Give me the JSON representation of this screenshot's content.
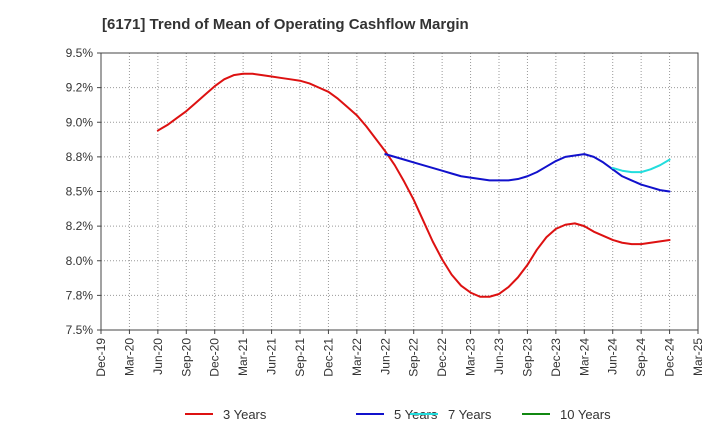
{
  "title": "[6171]  Trend of Mean of Operating Cashflow Margin",
  "chart_data": {
    "type": "line",
    "title": "[6171]  Trend of Mean of Operating Cashflow Margin",
    "xlabel": "",
    "ylabel": "",
    "x_ticks": [
      "Dec-19",
      "Mar-20",
      "Jun-20",
      "Sep-20",
      "Dec-20",
      "Mar-21",
      "Jun-21",
      "Sep-21",
      "Dec-21",
      "Mar-22",
      "Jun-22",
      "Sep-22",
      "Dec-22",
      "Mar-23",
      "Jun-23",
      "Sep-23",
      "Dec-23",
      "Mar-24",
      "Jun-24",
      "Sep-24",
      "Dec-24",
      "Mar-25"
    ],
    "y_ticks": [
      "7.5%",
      "7.8%",
      "8.0%",
      "8.2%",
      "8.5%",
      "8.8%",
      "9.0%",
      "9.2%",
      "9.5%"
    ],
    "y_tick_values": [
      7.5,
      7.75,
      8.0,
      8.25,
      8.5,
      8.75,
      9.0,
      9.25,
      9.5
    ],
    "ylim": [
      7.5,
      9.5
    ],
    "grid": true,
    "legend_position": "bottom",
    "series": [
      {
        "name": "3 Years",
        "color": "#dd1111",
        "x": [
          "Jun-20",
          "Jul-20",
          "Aug-20",
          "Sep-20",
          "Oct-20",
          "Nov-20",
          "Dec-20",
          "Jan-21",
          "Feb-21",
          "Mar-21",
          "Apr-21",
          "May-21",
          "Jun-21",
          "Jul-21",
          "Aug-21",
          "Sep-21",
          "Oct-21",
          "Nov-21",
          "Dec-21",
          "Jan-22",
          "Feb-22",
          "Mar-22",
          "Apr-22",
          "May-22",
          "Jun-22",
          "Jul-22",
          "Aug-22",
          "Sep-22",
          "Oct-22",
          "Nov-22",
          "Dec-22",
          "Jan-23",
          "Feb-23",
          "Mar-23",
          "Apr-23",
          "May-23",
          "Jun-23",
          "Jul-23",
          "Aug-23",
          "Sep-23",
          "Oct-23",
          "Nov-23",
          "Dec-23",
          "Jan-24",
          "Feb-24",
          "Mar-24",
          "Apr-24",
          "May-24",
          "Jun-24",
          "Jul-24",
          "Aug-24",
          "Sep-24",
          "Oct-24",
          "Nov-24",
          "Dec-24"
        ],
        "values": [
          8.94,
          8.98,
          9.03,
          9.08,
          9.14,
          9.2,
          9.26,
          9.31,
          9.34,
          9.35,
          9.35,
          9.34,
          9.33,
          9.32,
          9.31,
          9.3,
          9.28,
          9.25,
          9.22,
          9.17,
          9.11,
          9.05,
          8.97,
          8.88,
          8.79,
          8.69,
          8.57,
          8.44,
          8.29,
          8.14,
          8.01,
          7.9,
          7.82,
          7.77,
          7.74,
          7.74,
          7.76,
          7.81,
          7.88,
          7.97,
          8.08,
          8.17,
          8.23,
          8.26,
          8.27,
          8.25,
          8.21,
          8.18,
          8.15,
          8.13,
          8.12,
          8.12,
          8.13,
          8.14,
          8.15
        ],
        "x_offset": 6
      },
      {
        "name": "5 Years",
        "color": "#1111cc",
        "x": [
          "Jun-22",
          "Jul-22",
          "Aug-22",
          "Sep-22",
          "Oct-22",
          "Nov-22",
          "Dec-22",
          "Jan-23",
          "Feb-23",
          "Mar-23",
          "Apr-23",
          "May-23",
          "Jun-23",
          "Jul-23",
          "Aug-23",
          "Sep-23",
          "Oct-23",
          "Nov-23",
          "Dec-23",
          "Jan-24",
          "Feb-24",
          "Mar-24",
          "Apr-24",
          "May-24",
          "Jun-24",
          "Jul-24",
          "Aug-24",
          "Sep-24",
          "Oct-24",
          "Nov-24",
          "Dec-24"
        ],
        "values": [
          8.77,
          8.75,
          8.73,
          8.71,
          8.69,
          8.67,
          8.65,
          8.63,
          8.61,
          8.6,
          8.59,
          8.58,
          8.58,
          8.58,
          8.59,
          8.61,
          8.64,
          8.68,
          8.72,
          8.75,
          8.76,
          8.77,
          8.75,
          8.71,
          8.66,
          8.61,
          8.58,
          8.55,
          8.53,
          8.51,
          8.5
        ],
        "x_offset": 30
      },
      {
        "name": "7 Years",
        "color": "#22dddd",
        "x": [
          "Jun-24",
          "Jul-24",
          "Aug-24",
          "Sep-24",
          "Oct-24",
          "Nov-24",
          "Dec-24"
        ],
        "values": [
          8.67,
          8.65,
          8.64,
          8.64,
          8.66,
          8.69,
          8.73
        ],
        "x_offset": 54
      },
      {
        "name": "10 Years",
        "color": "#118811",
        "x": [],
        "values": [],
        "x_offset": 0
      }
    ]
  }
}
